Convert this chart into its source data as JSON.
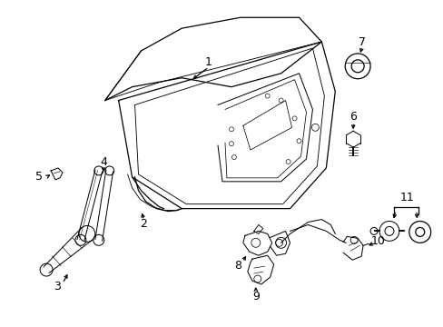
{
  "bg_color": "#ffffff",
  "line_color": "#000000",
  "lw": 0.9
}
